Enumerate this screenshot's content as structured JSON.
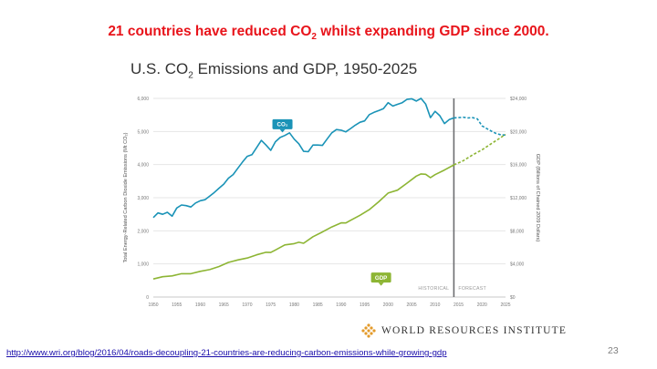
{
  "slide": {
    "headline_pre": "21 countries have reduced CO",
    "headline_sub": "2",
    "headline_post": " whilst expanding GDP since 2000.",
    "source_url": "http://www.wri.org/blog/2016/04/roads-decoupling-21-countries-are-reducing-carbon-emissions-while-growing-gdp",
    "slide_number": "23",
    "logo_text": "WORLD RESOURCES INSTITUTE"
  },
  "colors": {
    "co2": "#1a93b7",
    "gdp": "#8db534",
    "divider": "#6d6e71",
    "headline": "#e8141b"
  },
  "chart_data": {
    "type": "line",
    "title_pre": "U.S. CO",
    "title_sub": "2",
    "title_post": " Emissions and GDP, 1950-2025",
    "ylabel_left": "Total Energy-Related Carbon Dioxide Emissions (Mt CO₂)",
    "ylabel_right": "GDP (Billions of Chained 2009 Dollars)",
    "xlim": [
      1950,
      2025
    ],
    "ylim_left": [
      0,
      6000
    ],
    "ylim_right": [
      0,
      24000
    ],
    "x_ticks": [
      1950,
      1955,
      1960,
      1965,
      1970,
      1975,
      1980,
      1985,
      1990,
      1995,
      2000,
      2005,
      2010,
      2015,
      2020,
      2025
    ],
    "x_tick_labels": [
      "1950",
      "1955",
      "1960",
      "1965",
      "1970",
      "1975",
      "1980",
      "1985",
      "1990",
      "1995",
      "2000",
      "2005",
      "2010",
      "2015",
      "2020",
      "2025"
    ],
    "y_left_ticks": [
      0,
      1000,
      2000,
      3000,
      4000,
      5000,
      6000
    ],
    "y_left_labels": [
      "0",
      "1,000",
      "2,000",
      "3,000",
      "4,000",
      "5,000",
      "6,000"
    ],
    "y_right_ticks": [
      0,
      4000,
      8000,
      12000,
      16000,
      20000,
      24000
    ],
    "y_right_labels": [
      "$0",
      "$4,000",
      "$8,000",
      "$12,000",
      "$16,000",
      "$20,000",
      "$24,000"
    ],
    "divider_year": 2014,
    "region_labels": {
      "historical": "HISTORICAL",
      "forecast": "FORECAST"
    },
    "series": [
      {
        "name": "CO₂",
        "axis": "left",
        "historical": [
          [
            1950,
            2400
          ],
          [
            1951,
            2540
          ],
          [
            1952,
            2500
          ],
          [
            1953,
            2560
          ],
          [
            1954,
            2440
          ],
          [
            1955,
            2690
          ],
          [
            1956,
            2780
          ],
          [
            1957,
            2760
          ],
          [
            1958,
            2720
          ],
          [
            1959,
            2840
          ],
          [
            1960,
            2910
          ],
          [
            1961,
            2940
          ],
          [
            1962,
            3050
          ],
          [
            1963,
            3160
          ],
          [
            1964,
            3290
          ],
          [
            1965,
            3410
          ],
          [
            1966,
            3590
          ],
          [
            1967,
            3700
          ],
          [
            1968,
            3890
          ],
          [
            1969,
            4080
          ],
          [
            1970,
            4250
          ],
          [
            1971,
            4300
          ],
          [
            1972,
            4510
          ],
          [
            1973,
            4730
          ],
          [
            1974,
            4590
          ],
          [
            1975,
            4430
          ],
          [
            1976,
            4690
          ],
          [
            1977,
            4820
          ],
          [
            1978,
            4880
          ],
          [
            1979,
            4960
          ],
          [
            1980,
            4770
          ],
          [
            1981,
            4630
          ],
          [
            1982,
            4400
          ],
          [
            1983,
            4390
          ],
          [
            1984,
            4590
          ],
          [
            1985,
            4590
          ],
          [
            1986,
            4580
          ],
          [
            1987,
            4770
          ],
          [
            1988,
            4960
          ],
          [
            1989,
            5060
          ],
          [
            1990,
            5040
          ],
          [
            1991,
            4990
          ],
          [
            1992,
            5090
          ],
          [
            1993,
            5190
          ],
          [
            1994,
            5280
          ],
          [
            1995,
            5320
          ],
          [
            1996,
            5510
          ],
          [
            1997,
            5580
          ],
          [
            1998,
            5630
          ],
          [
            1999,
            5690
          ],
          [
            2000,
            5870
          ],
          [
            2001,
            5770
          ],
          [
            2002,
            5820
          ],
          [
            2003,
            5870
          ],
          [
            2004,
            5970
          ],
          [
            2005,
            5990
          ],
          [
            2006,
            5920
          ],
          [
            2007,
            6000
          ],
          [
            2008,
            5830
          ],
          [
            2009,
            5420
          ],
          [
            2010,
            5610
          ],
          [
            2011,
            5480
          ],
          [
            2012,
            5240
          ],
          [
            2013,
            5360
          ],
          [
            2014,
            5410
          ]
        ],
        "forecast": [
          [
            2014,
            5410
          ],
          [
            2015,
            5420
          ],
          [
            2016,
            5430
          ],
          [
            2017,
            5410
          ],
          [
            2018,
            5420
          ],
          [
            2019,
            5380
          ],
          [
            2020,
            5170
          ],
          [
            2021,
            5090
          ],
          [
            2022,
            5010
          ],
          [
            2023,
            4940
          ],
          [
            2024,
            4900
          ],
          [
            2025,
            4890
          ]
        ]
      },
      {
        "name": "GDP",
        "axis": "right",
        "historical": [
          [
            1950,
            2180
          ],
          [
            1952,
            2450
          ],
          [
            1954,
            2550
          ],
          [
            1956,
            2820
          ],
          [
            1958,
            2820
          ],
          [
            1960,
            3110
          ],
          [
            1962,
            3310
          ],
          [
            1964,
            3690
          ],
          [
            1966,
            4180
          ],
          [
            1968,
            4480
          ],
          [
            1970,
            4710
          ],
          [
            1972,
            5100
          ],
          [
            1974,
            5400
          ],
          [
            1975,
            5380
          ],
          [
            1976,
            5680
          ],
          [
            1978,
            6300
          ],
          [
            1980,
            6450
          ],
          [
            1981,
            6620
          ],
          [
            1982,
            6490
          ],
          [
            1984,
            7290
          ],
          [
            1986,
            7860
          ],
          [
            1988,
            8470
          ],
          [
            1990,
            8960
          ],
          [
            1991,
            8950
          ],
          [
            1992,
            9270
          ],
          [
            1994,
            9880
          ],
          [
            1996,
            10560
          ],
          [
            1998,
            11510
          ],
          [
            2000,
            12560
          ],
          [
            2002,
            12910
          ],
          [
            2004,
            13750
          ],
          [
            2006,
            14610
          ],
          [
            2007,
            14870
          ],
          [
            2008,
            14830
          ],
          [
            2009,
            14420
          ],
          [
            2010,
            14780
          ],
          [
            2012,
            15350
          ],
          [
            2014,
            15960
          ]
        ],
        "forecast": [
          [
            2014,
            15960
          ],
          [
            2016,
            16470
          ],
          [
            2018,
            17170
          ],
          [
            2020,
            17790
          ],
          [
            2022,
            18540
          ],
          [
            2024,
            19280
          ],
          [
            2025,
            19650
          ]
        ]
      }
    ],
    "annotations": [
      {
        "text": "CO₂",
        "series": "CO₂",
        "x": 1977.5,
        "y": 5220
      },
      {
        "text": "GDP",
        "series": "GDP",
        "x": 1998.5,
        "y": 2360
      }
    ]
  }
}
